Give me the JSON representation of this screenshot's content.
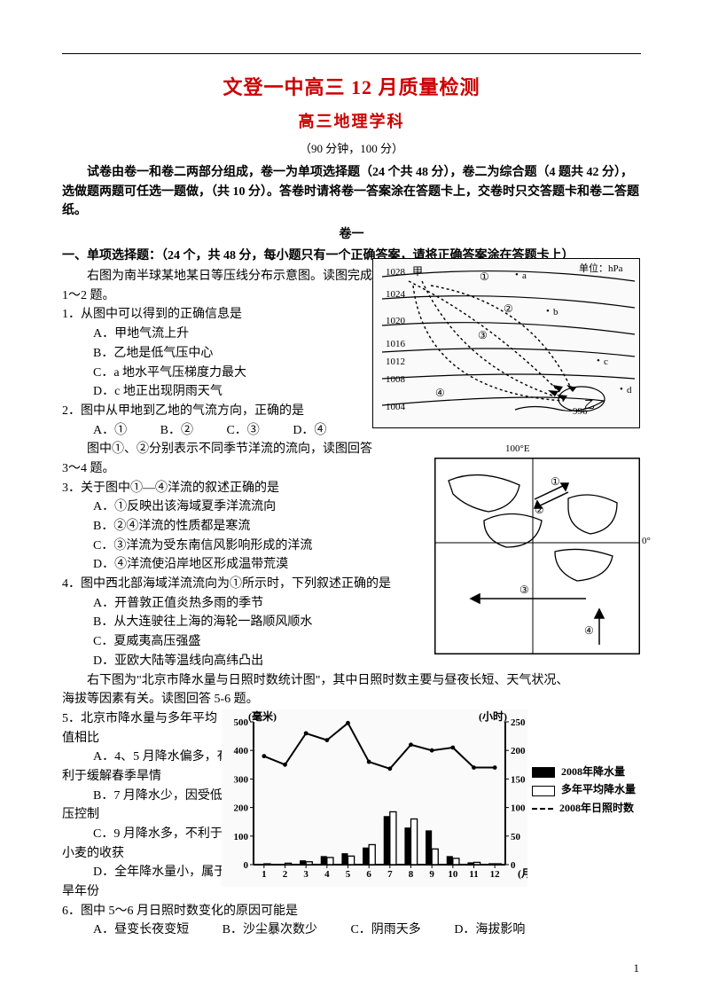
{
  "header": {
    "title_main": "文登一中高三 12 月质量检测",
    "title_sub": "高三地理学科",
    "duration": "（90 分钟，100 分）",
    "instructions": "试卷由卷一和卷二两部分组成，卷一为单项选择题（24 个共 48 分），卷二为综合题（4 题共 42 分），选做题两题可任选一题做，（共 10 分）。答卷时请将卷一答案涂在答题卡上，交卷时只交答题卡和卷二答题纸。"
  },
  "sections": {
    "juan1_label": "卷一",
    "mc_instr": "一、单项选择题：（24 个，共 48 分，每小题只有一个正确答案，请将正确答案涂在答题卡上）"
  },
  "block1_2": {
    "intro1": "右图为南半球某地某日等压线分布示意图。读图完成",
    "intro2": "1～2 题。",
    "q1_stem": "1．从图中可以得到的正确信息是",
    "q1_A": "A．甲地气流上升",
    "q1_B": "B．乙地是低气压中心",
    "q1_C": "C．a 地水平气压梯度力最大",
    "q1_D": "D．c 地正出现阴雨天气",
    "q2_stem": "2．图中从甲地到乙地的气流方向，正确的是",
    "q2_opts": {
      "A": "A．①",
      "B": "B．②",
      "C": "C．③",
      "D": "D．④"
    }
  },
  "block3_4": {
    "intro1": "图中①、②分别表示不同季节洋流的流向，读图回答",
    "intro2": "3～4 题。",
    "q3_stem": "3．关于图中①—④洋流的叙述正确的是",
    "q3_A": "A．①反映出该海域夏季洋流流向",
    "q3_B": "B．②④洋流的性质都是寒流",
    "q3_C": "C．③洋流为受东南信风影响形成的洋流",
    "q3_D": "D．④洋流使沿岸地区形成温带荒漠",
    "q4_stem": "4．图中西北部海域洋流流向为①所示时，下列叙述正确的是",
    "q4_A": "A．开普敦正值炎热多雨的季节",
    "q4_B": "B．从大连驶往上海的海轮一路顺风顺水",
    "q4_C": "C．夏威夷高压强盛",
    "q4_D": "D．亚欧大陆等温线向高纬凸出"
  },
  "block5_6": {
    "intro1": "右下图为\"北京市降水量与日照时数统计图\"，其中日照时数主要与昼夜长短、天气状况、",
    "intro2": "海拔等因素有关。读图回答 5-6 题。",
    "q5_stem": "5．北京市降水量与多年平均",
    "q5_stem2": "值相比",
    "q5_A": "A．4、5 月降水偏多，有",
    "q5_A2": "利于缓解春季旱情",
    "q5_B": "B．7 月降水少，因受低气",
    "q5_B2": "压控制",
    "q5_C": "C．9 月降水多，不利于冬",
    "q5_C2": "小麦的收获",
    "q5_D": "D．全年降水量小，属于偏",
    "q5_D2": "旱年份",
    "q6_stem": "6．图中 5～6 月日照时数变化的原因可能是",
    "q6_opts": {
      "A": "A．昼变长夜变短",
      "B": "B．沙尘暴次数少",
      "C": "C．阴雨天多",
      "D": "D．海拔影响"
    }
  },
  "figure1": {
    "title": "单位：hPa",
    "isobars": [
      "1028",
      "1024",
      "1020",
      "1016",
      "1012",
      "1008",
      "1004",
      "996"
    ],
    "points": [
      "甲",
      "乙",
      "a",
      "b",
      "c",
      "d",
      "①",
      "②",
      "③",
      "④"
    ]
  },
  "figure2": {
    "lon_label": "100°E",
    "lat_label": "0°",
    "labels": [
      "①",
      "②",
      "③",
      "④"
    ]
  },
  "figure3": {
    "y_left_label": "(毫米)",
    "y_right_label": "(小时)",
    "x_label": "(月)",
    "y_left_ticks": [
      "500",
      "400",
      "300",
      "200",
      "100",
      "0"
    ],
    "y_right_ticks": [
      "250",
      "200",
      "150",
      "100",
      "50",
      "0"
    ],
    "x_ticks": [
      "1",
      "2",
      "3",
      "4",
      "5",
      "6",
      "7",
      "8",
      "9",
      "10",
      "11",
      "12"
    ],
    "sunshine_line": [
      190,
      175,
      230,
      218,
      248,
      180,
      168,
      210,
      200,
      205,
      170,
      170
    ],
    "bars_2008": [
      2,
      2,
      15,
      30,
      40,
      60,
      170,
      130,
      120,
      30,
      8,
      5
    ],
    "bars_avg": [
      3,
      5,
      10,
      25,
      30,
      70,
      185,
      160,
      55,
      22,
      8,
      3
    ],
    "legend": {
      "a": "2008年降水量",
      "b": "多年平均降水量",
      "c": "2008年日照时数"
    },
    "colors": {
      "bar_2008": "#000000",
      "bar_avg": "#ffffff",
      "line": "#000000",
      "axis": "#000000"
    }
  },
  "page_number": "1"
}
